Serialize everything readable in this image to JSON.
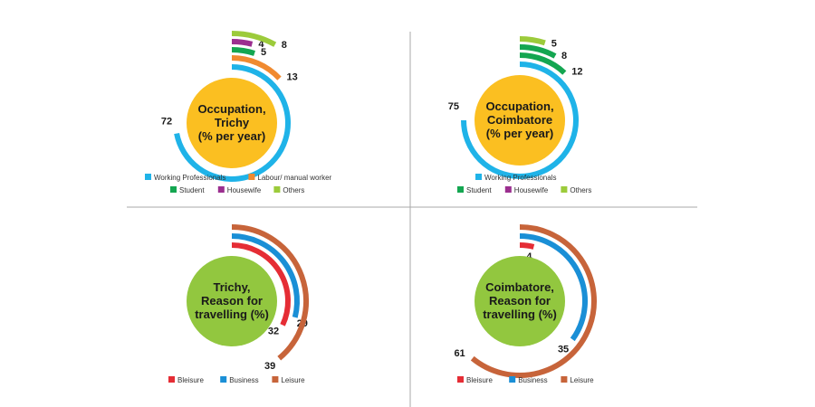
{
  "colors": {
    "working": "#1fb3e8",
    "labour": "#f08a30",
    "student": "#14a651",
    "housewife": "#9b2f8f",
    "others": "#9ccb3b",
    "bleisure": "#e52d35",
    "business": "#1a8fd6",
    "leisure": "#c7643a",
    "center_occupation": "#fbbf21",
    "center_reason": "#92c73f",
    "divider": "#a8a8a8"
  },
  "chart_data": [
    {
      "type": "radial-bar",
      "title": [
        "Occupation,",
        "Trichy",
        "(% per year)"
      ],
      "series": [
        {
          "name": "Working Professionals",
          "value": 72,
          "label": "72",
          "color_key": "working"
        },
        {
          "name": "Labour/ manual worker",
          "value": 13,
          "label": "13",
          "color_key": "labour"
        },
        {
          "name": "Student",
          "value": 5,
          "label": "5",
          "color_key": "student"
        },
        {
          "name": "Housewife",
          "value": 4,
          "label": "4",
          "color_key": "housewife"
        },
        {
          "name": "Others",
          "value": 8,
          "label": "8",
          "color_key": "others"
        }
      ],
      "legend": [
        [
          "Working Professionals",
          "Labour/ manual worker"
        ],
        [
          "Student",
          "Housewife",
          "Others"
        ]
      ]
    },
    {
      "type": "radial-bar",
      "title": [
        "Occupation,",
        "Coimbatore",
        "(% per year)"
      ],
      "series": [
        {
          "name": "Working Professionals",
          "value": 75,
          "label": "75",
          "color_key": "working"
        },
        {
          "name": "Student",
          "value": 12,
          "label": "12",
          "color_key": "student"
        },
        {
          "name": "Student",
          "value": 8,
          "label": "8",
          "color_key": "student"
        },
        {
          "name": "Others",
          "value": 5,
          "label": "5",
          "color_key": "others"
        }
      ],
      "legend": [
        [
          "Working Professionals"
        ],
        [
          "Student",
          "Housewife",
          "Others"
        ]
      ]
    },
    {
      "type": "radial-bar",
      "title": [
        "Trichy,",
        "Reason for",
        "travelling (%)"
      ],
      "series": [
        {
          "name": "Bleisure",
          "value": 32,
          "label": "32",
          "color_key": "bleisure"
        },
        {
          "name": "Business",
          "value": 29,
          "label": "29",
          "color_key": "business"
        },
        {
          "name": "Leisure",
          "value": 39,
          "label": "39",
          "color_key": "leisure"
        }
      ],
      "legend": [
        [
          "Bleisure",
          "Business",
          "Leisure"
        ]
      ]
    },
    {
      "type": "radial-bar",
      "title": [
        "Coimbatore,",
        "Reason for",
        "travelling (%)"
      ],
      "series": [
        {
          "name": "Bleisure",
          "value": 4,
          "label": "4",
          "color_key": "bleisure"
        },
        {
          "name": "Business",
          "value": 35,
          "label": "35",
          "color_key": "business"
        },
        {
          "name": "Leisure",
          "value": 61,
          "label": "61",
          "color_key": "leisure"
        }
      ],
      "legend": [
        [
          "Bleisure",
          "Business",
          "Leisure"
        ]
      ]
    }
  ]
}
